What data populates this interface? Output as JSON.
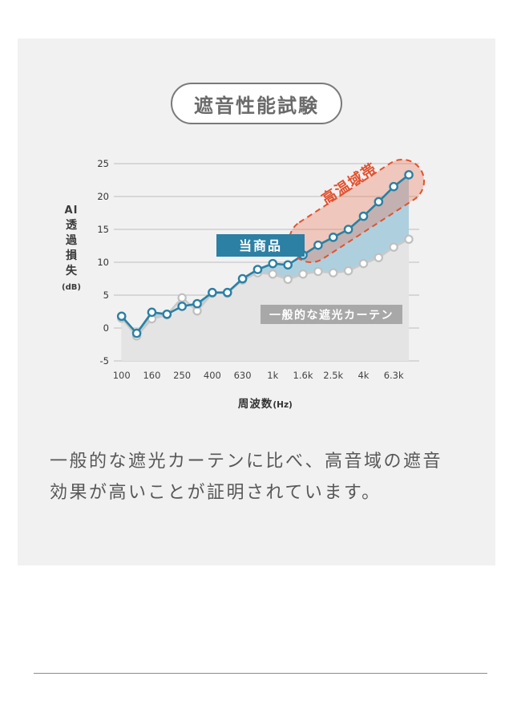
{
  "header": {
    "title": "遮音性能試験"
  },
  "description": {
    "line1": "一般的な遮光カーテンに比べ、高音域の遮音",
    "line2": "効果が高いことが証明されています。"
  },
  "colors": {
    "panel_bg": "#f1f1f1",
    "grid": "#ababab",
    "product_line": "#2b80a4",
    "generic_line": "#c9c9c9",
    "generic_marker_stroke": "#bfbfbf",
    "band_fill": "#aed0de",
    "under_fill": "#e4e4e4",
    "annotation": "#e4512d",
    "annotation_fill": "rgba(236,115,82,0.33)",
    "badge_product_bg": "#2b80a4",
    "badge_generic_bg": "#a8a8a8",
    "tick_text": "#444444",
    "axis_text": "#333333"
  },
  "chart_data": {
    "type": "line",
    "title": "遮音性能試験",
    "xlabel": "周波数",
    "xlabel_unit": "(Hz)",
    "ylabel": "AI透過損失(dB)",
    "ylabel_chars": [
      "AI",
      "透",
      "過",
      "損",
      "失",
      "(dB)"
    ],
    "ylim": [
      -5,
      25
    ],
    "yticks": [
      25,
      20,
      15,
      10,
      5,
      0,
      -5
    ],
    "grid": true,
    "categories": [
      "100",
      "125",
      "160",
      "200",
      "250",
      "315",
      "400",
      "500",
      "630",
      "800",
      "1k",
      "1.25k",
      "1.6k",
      "2k",
      "2.5k",
      "3.15k",
      "4k",
      "5k",
      "6.3k",
      "8k"
    ],
    "x_tick_labels": [
      "100",
      "160",
      "250",
      "400",
      "630",
      "1k",
      "1.6k",
      "2.5k",
      "4k",
      "6.3k"
    ],
    "x_tick_indices": [
      0,
      2,
      4,
      6,
      8,
      10,
      12,
      14,
      16,
      18
    ],
    "series": [
      {
        "name": "当商品",
        "values": [
          1.8,
          -0.8,
          2.4,
          2.1,
          3.3,
          3.7,
          5.4,
          5.4,
          7.5,
          8.9,
          9.8,
          9.6,
          11.1,
          12.6,
          13.8,
          15.0,
          17.0,
          19.2,
          21.5,
          23.3
        ]
      },
      {
        "name": "一般的な遮光カーテン",
        "values": [
          1.5,
          -1.2,
          1.4,
          2.0,
          4.6,
          2.6,
          5.3,
          5.3,
          7.3,
          8.4,
          8.2,
          7.4,
          8.2,
          8.6,
          8.4,
          8.7,
          9.8,
          10.7,
          12.3,
          13.5
        ]
      }
    ],
    "annotation": {
      "label": "高温域帯",
      "start_index": 12,
      "end_index": 19
    },
    "legend_position": "inline-badges"
  }
}
